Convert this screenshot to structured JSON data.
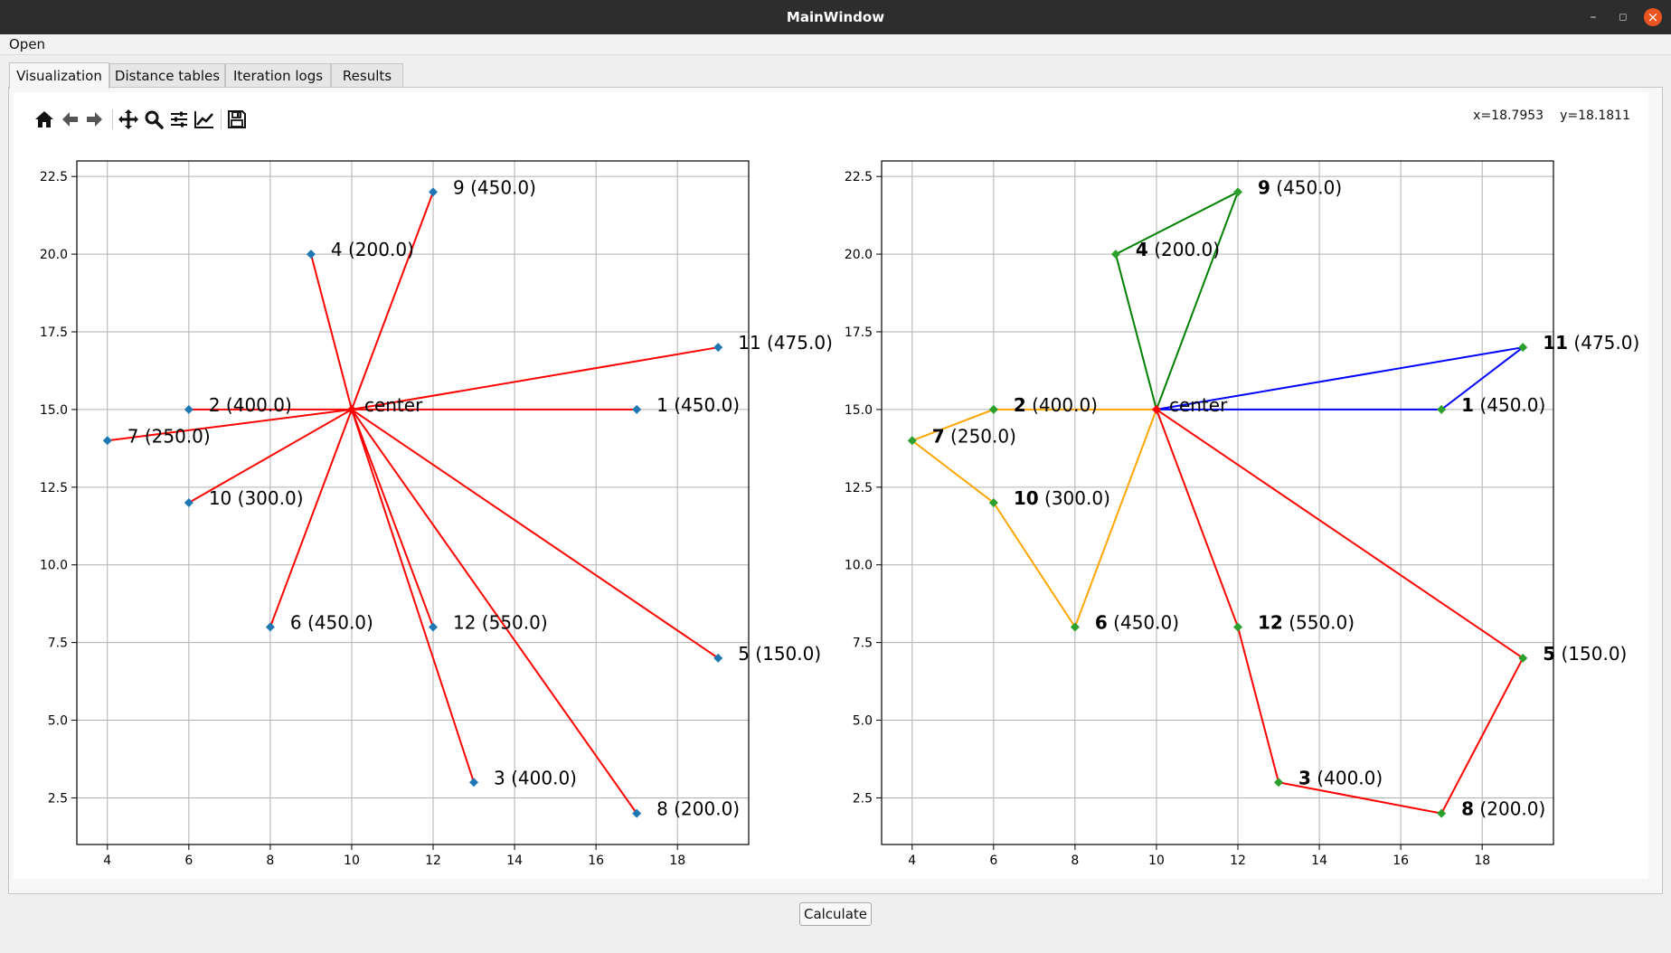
{
  "window": {
    "title": "MainWindow"
  },
  "menu": {
    "open_label": "Open"
  },
  "tabs": [
    {
      "label": "Visualization",
      "active": true
    },
    {
      "label": "Distance tables",
      "active": false
    },
    {
      "label": "Iteration logs",
      "active": false
    },
    {
      "label": "Results",
      "active": false
    }
  ],
  "toolbar": {
    "icons": [
      "home-icon",
      "back-arrow-icon",
      "forward-arrow-icon",
      "pan-icon",
      "zoom-icon",
      "subplots-config-icon",
      "axes-edit-icon",
      "save-icon"
    ]
  },
  "coords": {
    "x": "x=18.7953",
    "y": "y=18.1811"
  },
  "calculate_label": "Calculate",
  "colors": {
    "marker_left": "#1f77b4",
    "marker_right": "#2ca02c",
    "line_red": "#ff0000",
    "line_green": "#008000",
    "line_blue": "#0000ff",
    "line_orange": "#ffa500",
    "grid": "#b0b0b0"
  },
  "chart_data": [
    {
      "type": "scatter",
      "xticks": [
        4,
        6,
        8,
        10,
        12,
        14,
        16,
        18
      ],
      "yticks": [
        "2.5",
        "5.0",
        "7.5",
        "10.0",
        "12.5",
        "15.0",
        "17.5",
        "20.0",
        "22.5"
      ],
      "xlim": [
        3.25,
        19.75
      ],
      "ylim": [
        1.0,
        23.0
      ],
      "grid": true,
      "center": {
        "label": "center",
        "x": 10,
        "y": 15
      },
      "points": [
        {
          "label": "1 (450.0)",
          "x": 17,
          "y": 15
        },
        {
          "label": "2 (400.0)",
          "x": 6,
          "y": 15
        },
        {
          "label": "3 (400.0)",
          "x": 13,
          "y": 3
        },
        {
          "label": "4 (200.0)",
          "x": 9,
          "y": 20
        },
        {
          "label": "5 (150.0)",
          "x": 19,
          "y": 7
        },
        {
          "label": "6 (450.0)",
          "x": 8,
          "y": 8
        },
        {
          "label": "7 (250.0)",
          "x": 4,
          "y": 14
        },
        {
          "label": "8 (200.0)",
          "x": 17,
          "y": 2
        },
        {
          "label": "9 (450.0)",
          "x": 12,
          "y": 22
        },
        {
          "label": "10 (300.0)",
          "x": 6,
          "y": 12
        },
        {
          "label": "11 (475.0)",
          "x": 19,
          "y": 17
        },
        {
          "label": "12 (550.0)",
          "x": 12,
          "y": 8
        }
      ],
      "lines": "each point connected to center"
    },
    {
      "type": "line",
      "xticks": [
        4,
        6,
        8,
        10,
        12,
        14,
        16,
        18
      ],
      "yticks": [
        "2.5",
        "5.0",
        "7.5",
        "10.0",
        "12.5",
        "15.0",
        "17.5",
        "20.0",
        "22.5"
      ],
      "xlim": [
        3.25,
        19.75
      ],
      "ylim": [
        1.0,
        23.0
      ],
      "grid": true,
      "center": {
        "label": "center",
        "x": 10,
        "y": 15
      },
      "points": [
        {
          "id": "1",
          "value": " (450.0)",
          "x": 17,
          "y": 15
        },
        {
          "id": "2",
          "value": " (400.0)",
          "x": 6,
          "y": 15
        },
        {
          "id": "3",
          "value": " (400.0)",
          "x": 13,
          "y": 3
        },
        {
          "id": "4",
          "value": " (200.0)",
          "x": 9,
          "y": 20
        },
        {
          "id": "5",
          "value": " (150.0)",
          "x": 19,
          "y": 7
        },
        {
          "id": "6",
          "value": " (450.0)",
          "x": 8,
          "y": 8
        },
        {
          "id": "7",
          "value": " (250.0)",
          "x": 4,
          "y": 14
        },
        {
          "id": "8",
          "value": " (200.0)",
          "x": 17,
          "y": 2
        },
        {
          "id": "9",
          "value": " (450.0)",
          "x": 12,
          "y": 22
        },
        {
          "id": "10",
          "value": " (300.0)",
          "x": 6,
          "y": 12
        },
        {
          "id": "11",
          "value": " (475.0)",
          "x": 19,
          "y": 17
        },
        {
          "id": "12",
          "value": " (550.0)",
          "x": 12,
          "y": 8
        }
      ],
      "routes": [
        {
          "color": "#008000",
          "path": [
            [
              10,
              15
            ],
            [
              9,
              20
            ],
            [
              12,
              22
            ],
            [
              10,
              15
            ]
          ]
        },
        {
          "color": "#0000ff",
          "path": [
            [
              10,
              15
            ],
            [
              19,
              17
            ],
            [
              17,
              15
            ],
            [
              10,
              15
            ]
          ]
        },
        {
          "color": "#ffa500",
          "path": [
            [
              10,
              15
            ],
            [
              6,
              15
            ],
            [
              4,
              14
            ],
            [
              6,
              12
            ],
            [
              8,
              8
            ],
            [
              10,
              15
            ]
          ]
        },
        {
          "color": "#ff0000",
          "path": [
            [
              10,
              15
            ],
            [
              12,
              8
            ],
            [
              13,
              3
            ],
            [
              17,
              2
            ],
            [
              19,
              7
            ],
            [
              10,
              15
            ]
          ]
        }
      ]
    }
  ]
}
